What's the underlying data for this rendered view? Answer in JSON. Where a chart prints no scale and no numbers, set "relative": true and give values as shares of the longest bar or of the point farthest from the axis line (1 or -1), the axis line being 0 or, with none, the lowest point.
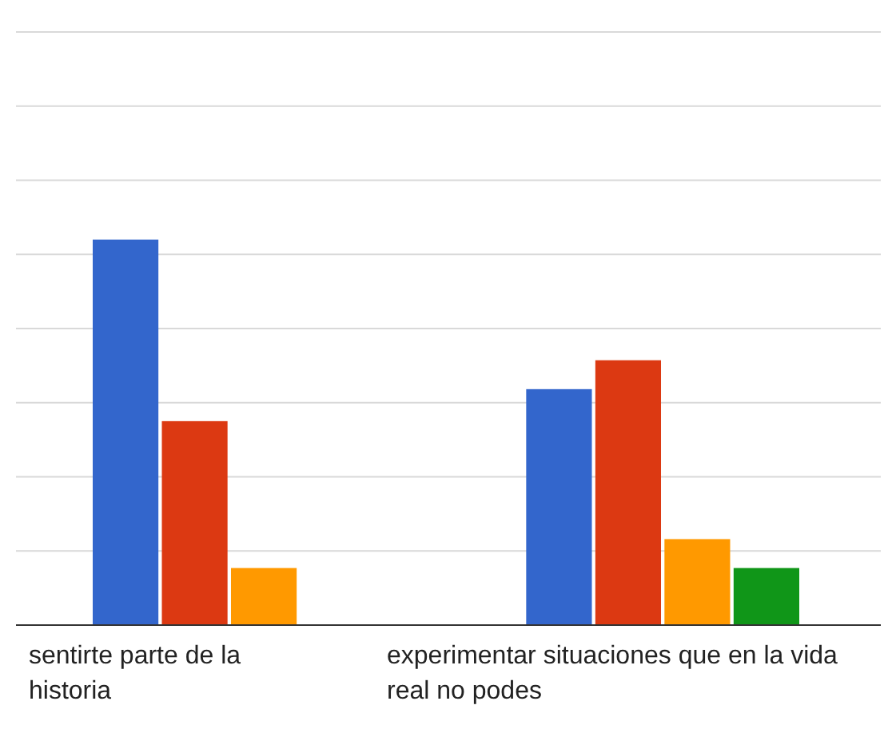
{
  "chart_data": {
    "type": "bar",
    "relative": true,
    "grid": true,
    "categories": [
      "sentirte parte de la historia",
      "experimentar situaciones que en la vida real no podes"
    ],
    "series": [
      {
        "color": "#3366cc",
        "values": [
          1,
          0.612
        ]
      },
      {
        "color": "#dc3912",
        "values": [
          0.529,
          0.687
        ]
      },
      {
        "color": "#ff9900",
        "values": [
          0.148,
          0.223
        ]
      },
      {
        "color": "#109618",
        "values": [
          null,
          0.148
        ]
      }
    ]
  }
}
